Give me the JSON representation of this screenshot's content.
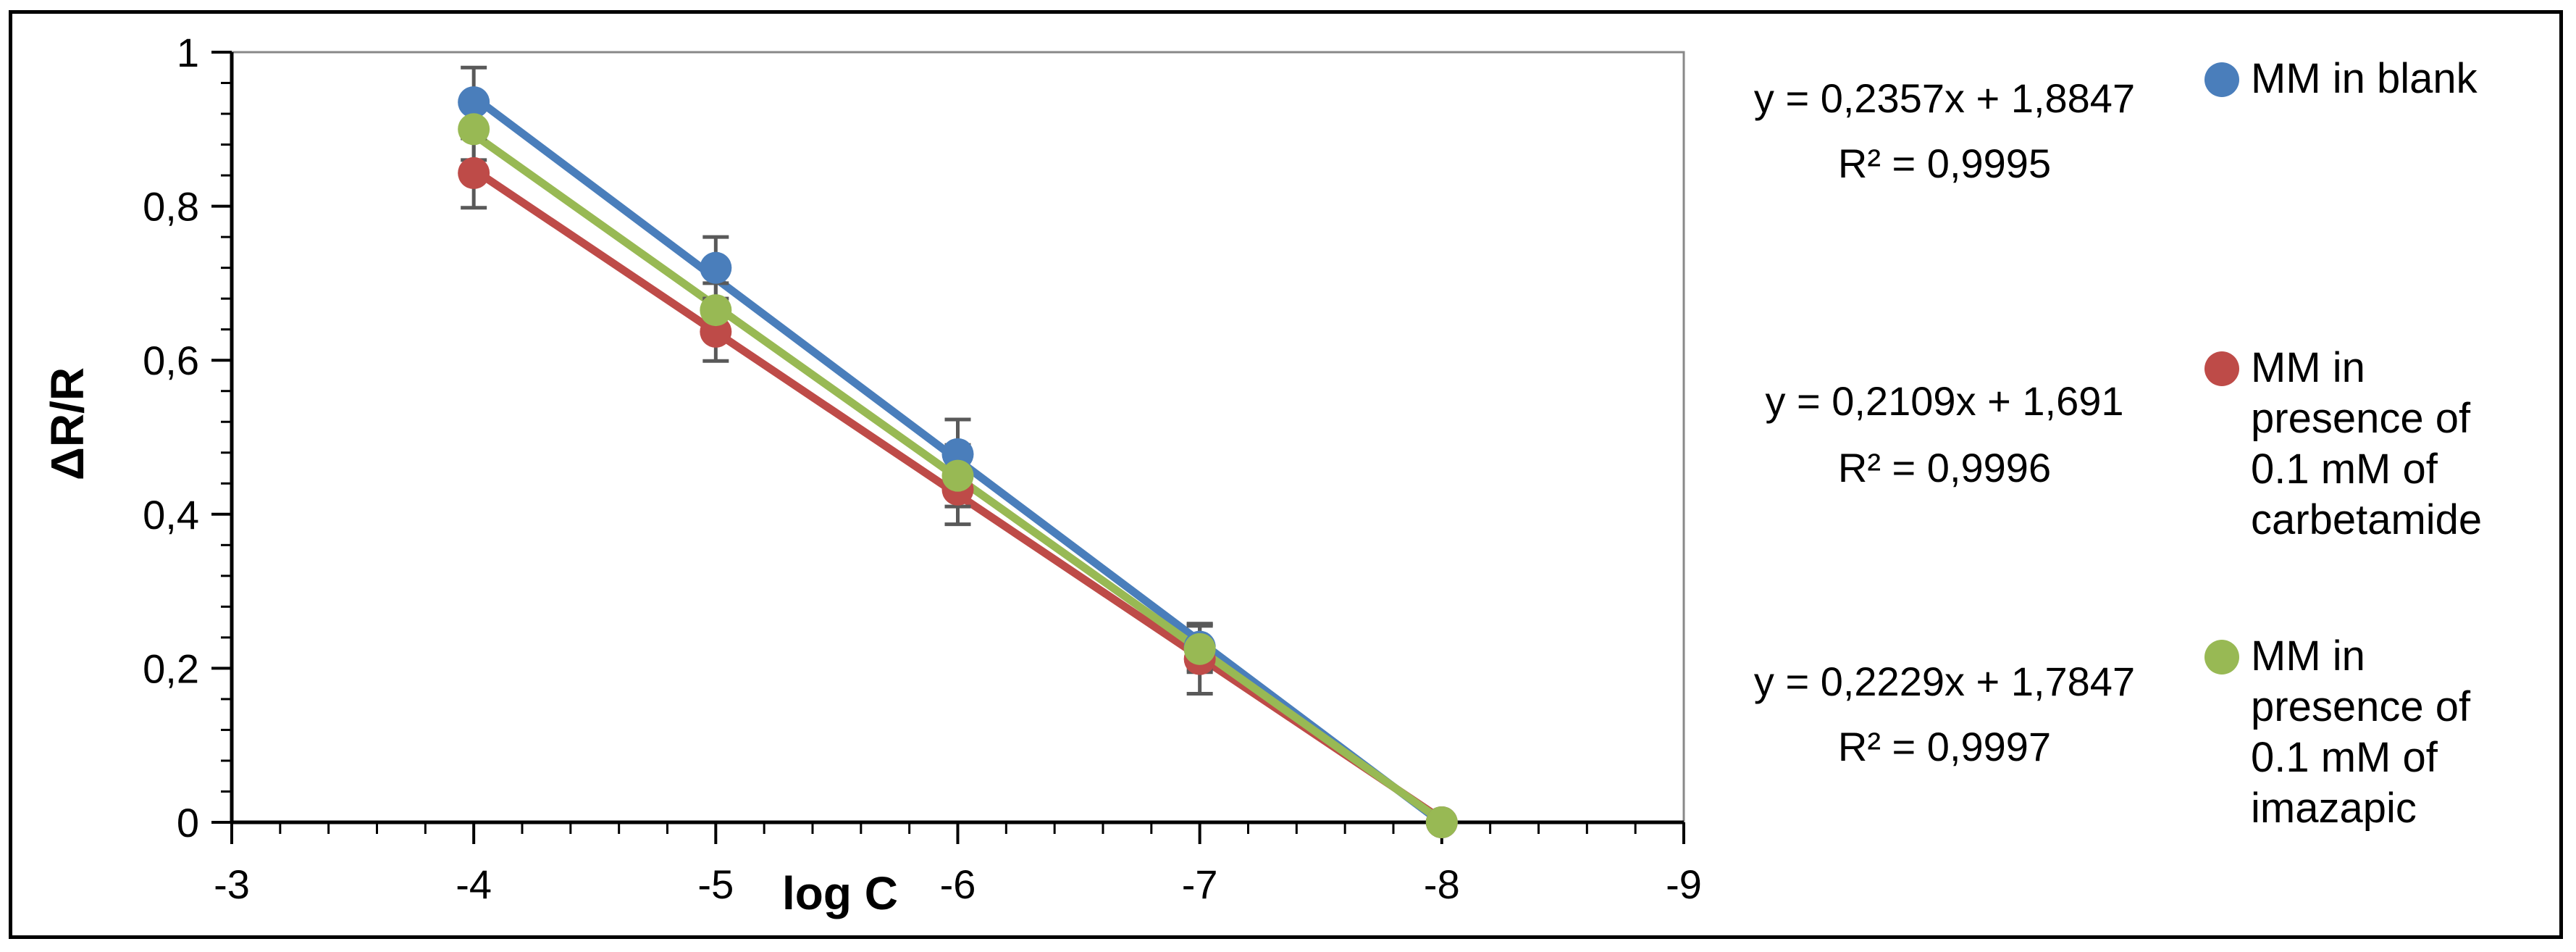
{
  "chart_data": {
    "type": "scatter",
    "xlabel": "log C",
    "ylabel": "ΔR/R",
    "xlim": [
      -3,
      -9
    ],
    "ylim": [
      0,
      1
    ],
    "x_ticks": [
      "-3",
      "-4",
      "-5",
      "-6",
      "-7",
      "-8",
      "-9"
    ],
    "y_ticks": [
      "0",
      "0,2",
      "0,4",
      "0,6",
      "0,8",
      "1"
    ],
    "x_tick_values": [
      -3,
      -4,
      -5,
      -6,
      -7,
      -8,
      -9
    ],
    "y_tick_values": [
      0,
      0.2,
      0.4,
      0.6,
      0.8,
      1
    ],
    "grid": false,
    "legend_position": "right",
    "trendlines": true,
    "series": [
      {
        "name_lines": [
          "MM in blank"
        ],
        "color": "#4a7ebb",
        "x": [
          -4,
          -5,
          -6,
          -7,
          -8
        ],
        "y": [
          0.935,
          0.72,
          0.478,
          0.228,
          0.0
        ],
        "error": [
          0.045,
          0.04,
          0.045,
          0.03,
          0.0
        ],
        "trend_slope": 0.2357,
        "trend_intercept": 1.8847,
        "equation": "y = 0,2357x + 1,8847",
        "r2": "R² = 0,9995"
      },
      {
        "name_lines": [
          "MM in",
          "presence of",
          "0.1 mM of",
          "carbetamide"
        ],
        "color": "#be4b48",
        "x": [
          -4,
          -5,
          -6,
          -7,
          -8
        ],
        "y": [
          0.843,
          0.637,
          0.432,
          0.212,
          0.0
        ],
        "error": [
          0.045,
          0.038,
          0.045,
          0.045,
          0.0
        ],
        "trend_slope": 0.2109,
        "trend_intercept": 1.691,
        "equation": "y = 0,2109x + 1,691",
        "r2": "R² = 0,9996"
      },
      {
        "name_lines": [
          "MM in",
          "presence of",
          "0.1 mM of",
          "imazapic"
        ],
        "color": "#98b954",
        "x": [
          -4,
          -5,
          -6,
          -7,
          -8
        ],
        "y": [
          0.9,
          0.665,
          0.45,
          0.225,
          0.0
        ],
        "error": [
          0.04,
          0.035,
          0.04,
          0.03,
          0.0
        ],
        "trend_slope": 0.2229,
        "trend_intercept": 1.7847,
        "equation": "y = 0,2229x + 1,7847",
        "r2": "R² = 0,9997"
      }
    ]
  }
}
